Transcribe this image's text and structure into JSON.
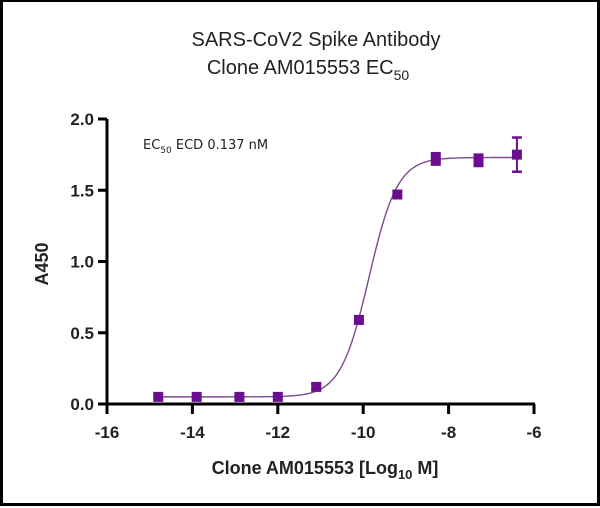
{
  "chart_data": {
    "type": "scatter",
    "title": "SARS-CoV2 Spike Antibody",
    "subtitle": "Clone AM015553 EC50",
    "subtitle_main": "Clone AM015553 EC",
    "subtitle_sub": "50",
    "xlabel": "Clone AM015553 [Log10 M]",
    "xlabel_main": "Clone AM015553 [Log",
    "xlabel_sub": "10",
    "xlabel_end": " M]",
    "ylabel": "A450",
    "xlim": [
      -16,
      -6
    ],
    "ylim": [
      0,
      2.0
    ],
    "xticks": [
      -16,
      -14,
      -12,
      -10,
      -8,
      -6
    ],
    "xtick_labels": [
      "-16",
      "-14",
      "-12",
      "-10",
      "-8",
      "-6"
    ],
    "yticks": [
      0,
      0.5,
      1.0,
      1.5,
      2.0
    ],
    "ytick_labels": [
      "0.0",
      "0.5",
      "1.0",
      "1.5",
      "2.0"
    ],
    "grid": false,
    "legend": null,
    "annotation": "EC50 ECD 0.137 nM",
    "annotation_pre": "EC",
    "annotation_sub": "50",
    "annotation_post": " ECD 0.137 nM",
    "series": [
      {
        "name": "Clone AM015553",
        "color": "#6a0d91",
        "marker": "square",
        "x": [
          -14.8,
          -13.9,
          -12.9,
          -12.0,
          -11.1,
          -10.1,
          -9.2,
          -8.3,
          -7.3,
          -6.4
        ],
        "y": [
          0.05,
          0.05,
          0.05,
          0.05,
          0.12,
          0.59,
          1.47,
          1.72,
          1.71,
          1.75
        ],
        "yerr": [
          0.01,
          0.01,
          0.01,
          0.01,
          0.02,
          0.01,
          0.01,
          0.04,
          0.04,
          0.12
        ]
      }
    ],
    "fit": {
      "type": "4PL",
      "bottom": 0.05,
      "top": 1.73,
      "logEC50": -9.863,
      "hill": 1.3,
      "color": "#7d4b8e"
    }
  }
}
